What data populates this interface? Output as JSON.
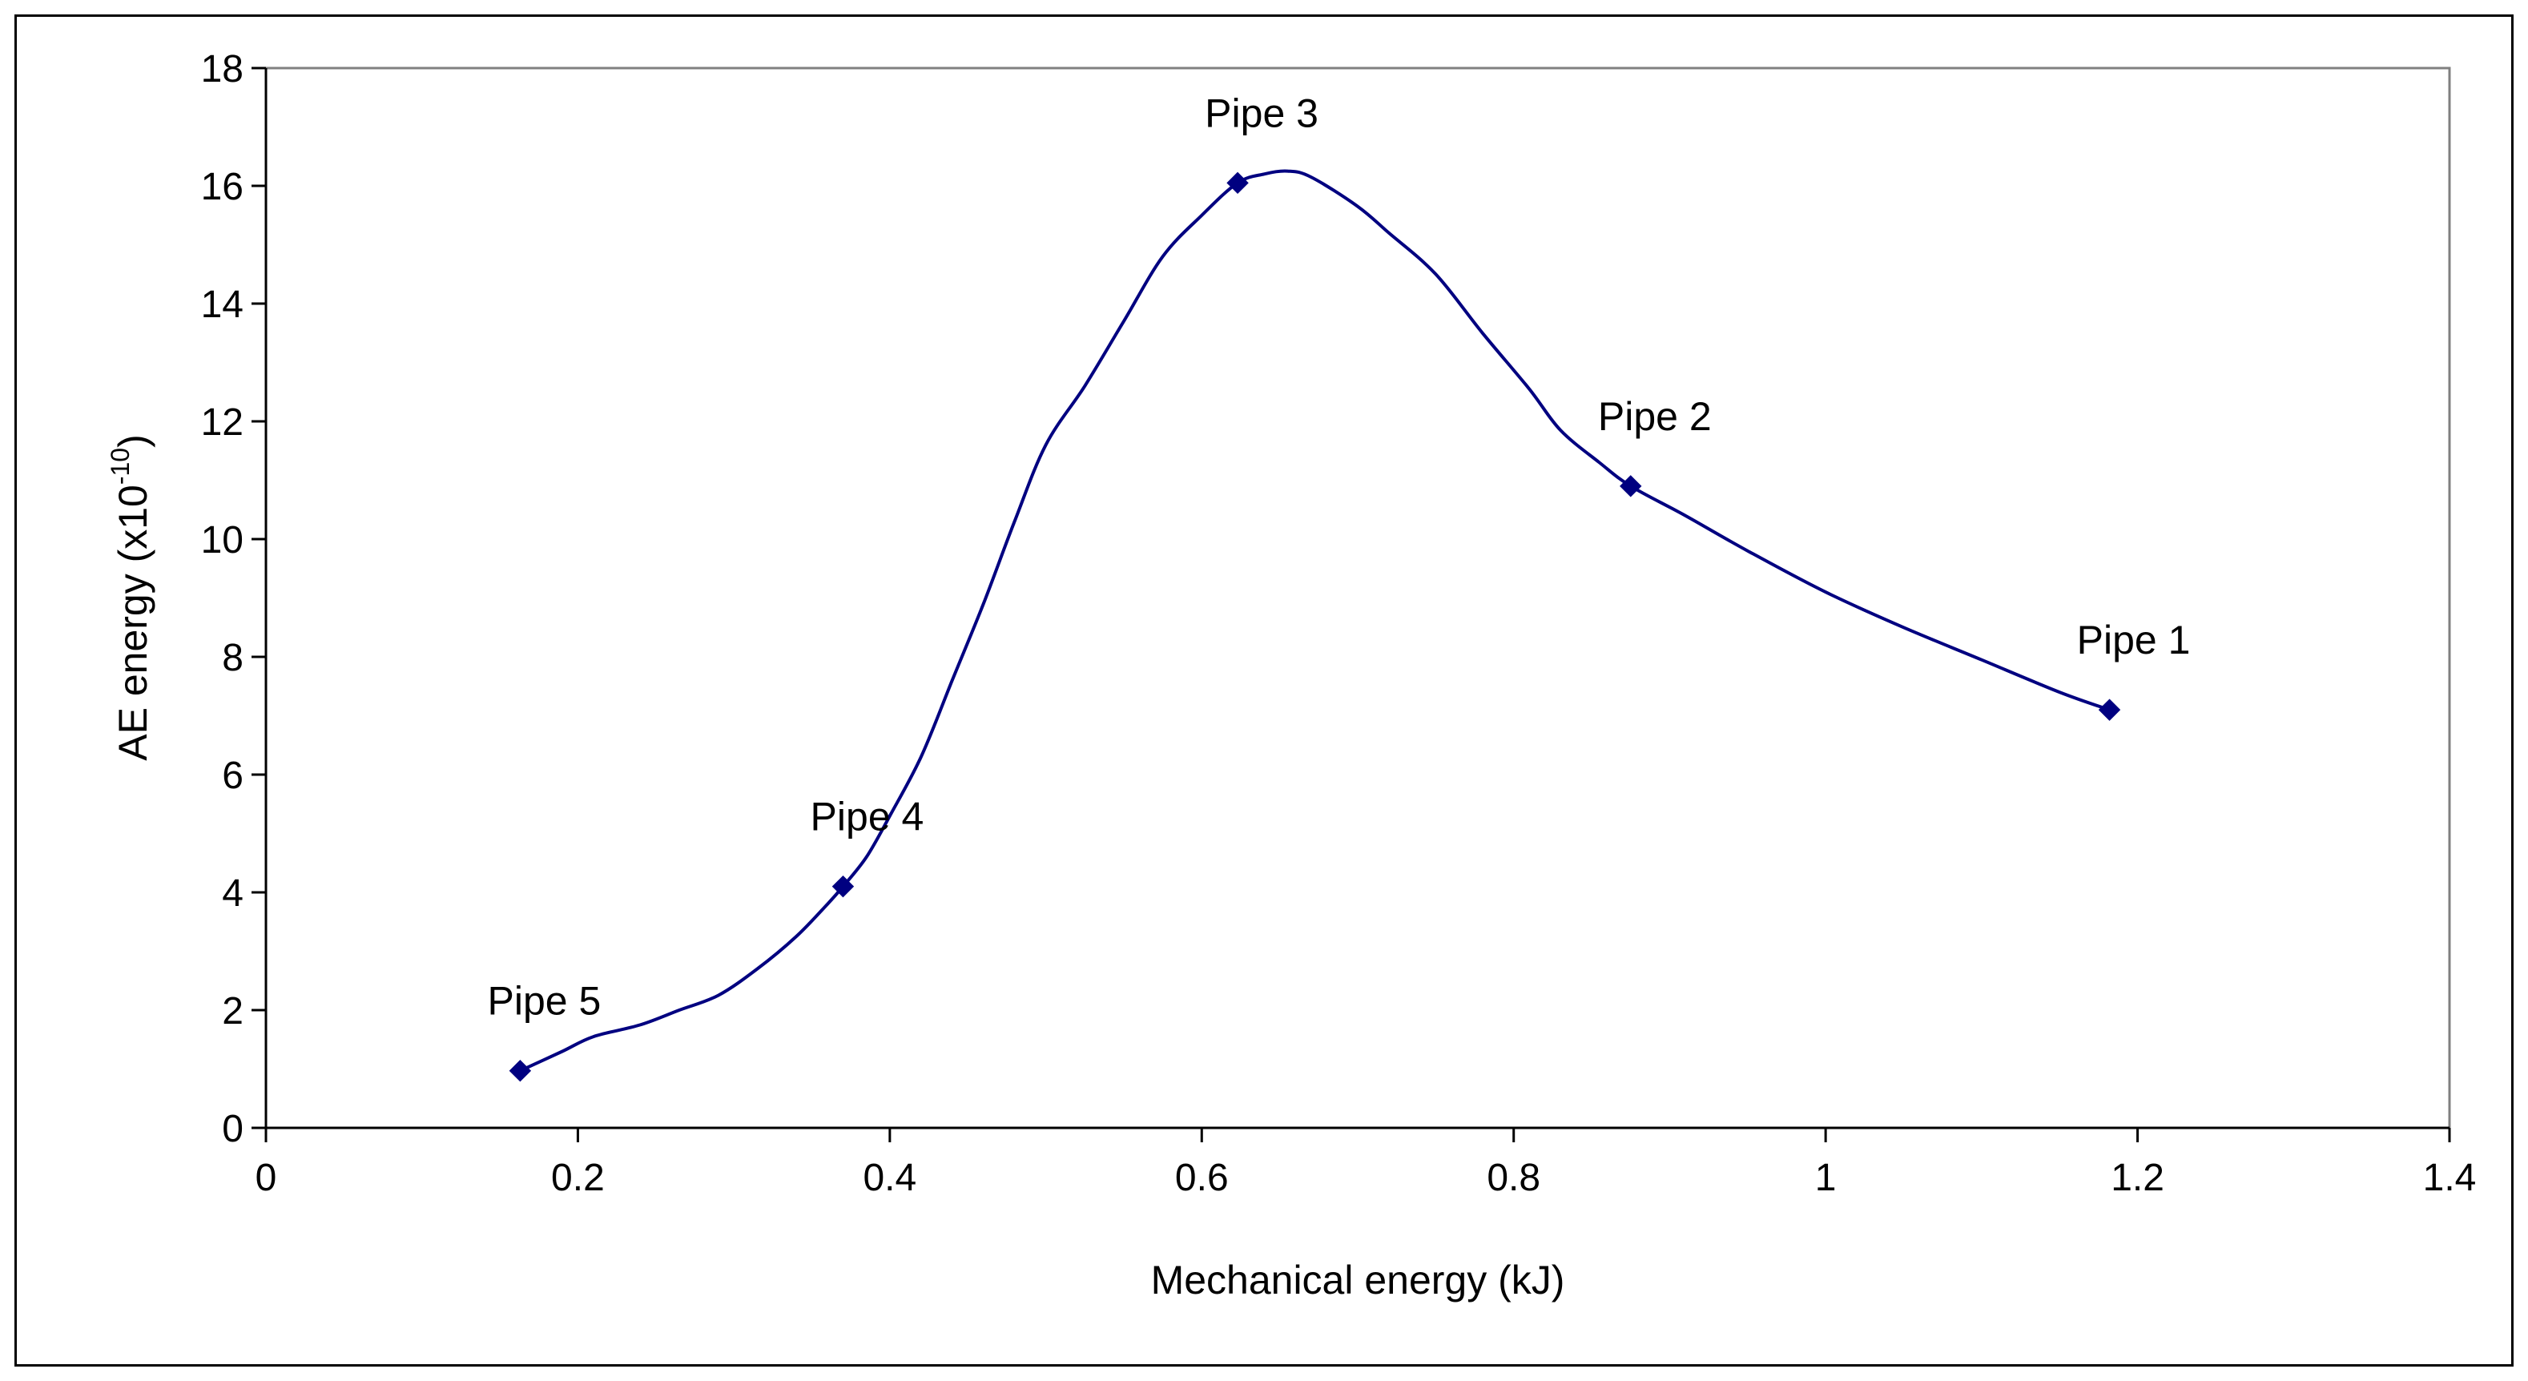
{
  "chart_data": {
    "type": "line",
    "title": "",
    "xlabel": "Mechanical energy (kJ)",
    "ylabel_main": "AE energy (x10",
    "ylabel_sup": "-10",
    "ylabel_end": ")",
    "xlim": [
      0,
      1.4
    ],
    "ylim": [
      0,
      18
    ],
    "x_ticks": [
      0,
      0.2,
      0.4,
      0.6,
      0.8,
      1,
      1.2,
      1.4
    ],
    "x_tick_labels": [
      "0",
      "0.2",
      "0.4",
      "0.6",
      "0.8",
      "1",
      "1.2",
      "1.4"
    ],
    "y_ticks": [
      0,
      2,
      4,
      6,
      8,
      10,
      12,
      14,
      16,
      18
    ],
    "y_tick_labels": [
      "0",
      "2",
      "4",
      "6",
      "8",
      "10",
      "12",
      "14",
      "16",
      "18"
    ],
    "grid": false,
    "legend": "none",
    "series": [
      {
        "name": "AE energy",
        "color": "#000080",
        "marker": "diamond",
        "smooth": true,
        "points": [
          {
            "x": 0.163,
            "y": 0.97,
            "label": "Pipe 5"
          },
          {
            "x": 0.37,
            "y": 4.1,
            "label": "Pipe 4"
          },
          {
            "x": 0.623,
            "y": 16.05,
            "label": "Pipe 3"
          },
          {
            "x": 0.875,
            "y": 10.9,
            "label": "Pipe 2"
          },
          {
            "x": 1.182,
            "y": 7.1,
            "label": "Pipe 1"
          }
        ],
        "curve_x": [
          0.163,
          0.19,
          0.21,
          0.24,
          0.265,
          0.29,
          0.315,
          0.34,
          0.36,
          0.37,
          0.385,
          0.4,
          0.42,
          0.44,
          0.46,
          0.48,
          0.5,
          0.525,
          0.55,
          0.575,
          0.6,
          0.623,
          0.64,
          0.655,
          0.67,
          0.7,
          0.72,
          0.75,
          0.78,
          0.81,
          0.83,
          0.855,
          0.875,
          0.91,
          0.95,
          1.0,
          1.05,
          1.1,
          1.15,
          1.182
        ],
        "curve_y": [
          0.97,
          1.3,
          1.55,
          1.75,
          2.0,
          2.25,
          2.7,
          3.25,
          3.8,
          4.1,
          4.6,
          5.3,
          6.3,
          7.6,
          8.9,
          10.3,
          11.6,
          12.6,
          13.7,
          14.8,
          15.5,
          16.05,
          16.2,
          16.25,
          16.15,
          15.65,
          15.2,
          14.5,
          13.5,
          12.55,
          11.85,
          11.3,
          10.9,
          10.4,
          9.8,
          9.1,
          8.5,
          7.95,
          7.4,
          7.1
        ]
      }
    ]
  }
}
